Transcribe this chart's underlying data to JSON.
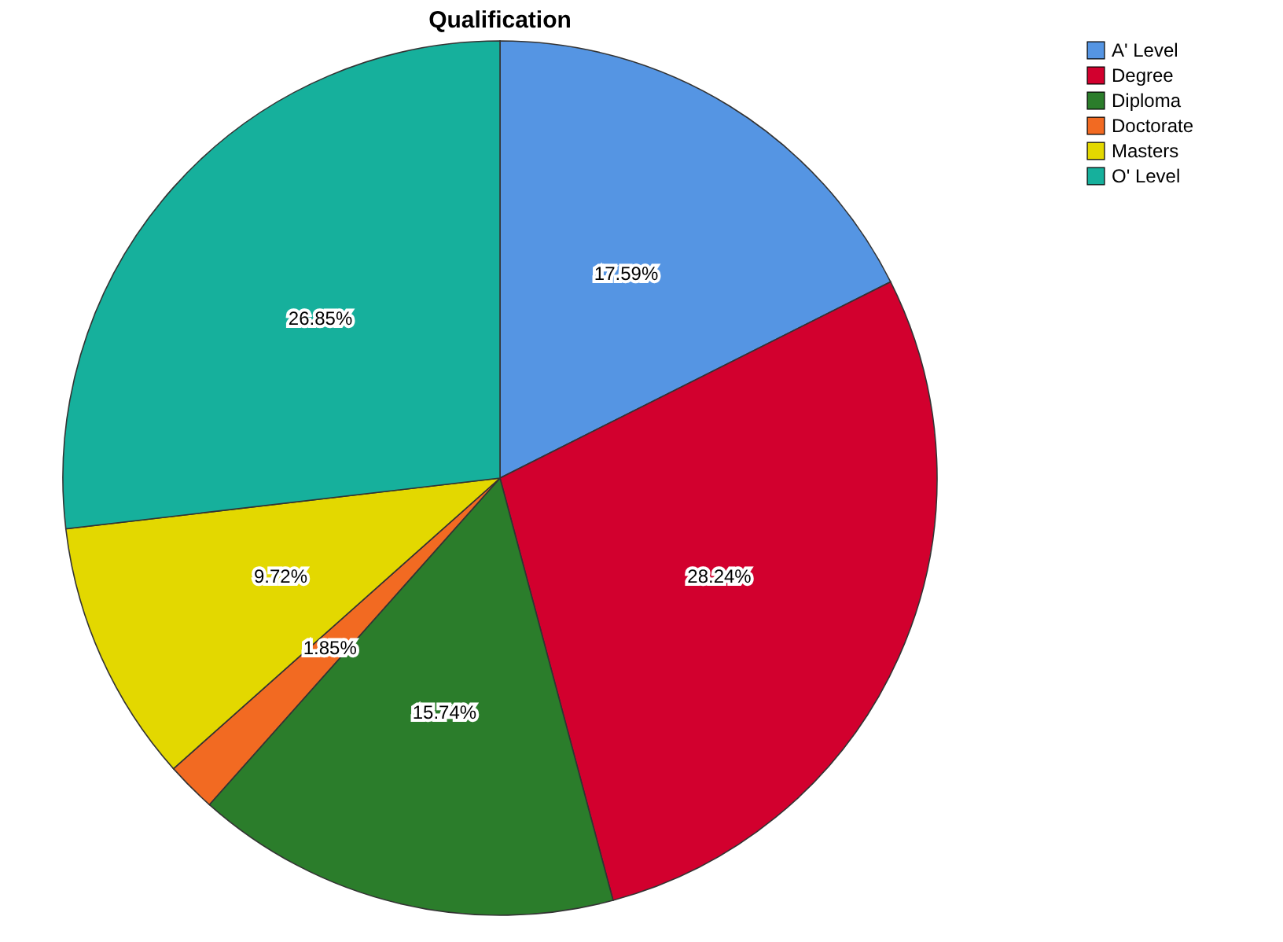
{
  "chart_data": {
    "type": "pie",
    "title": "Qualification",
    "categories": [
      "A' Level",
      "Degree",
      "Diploma",
      "Doctorate",
      "Masters",
      "O' Level"
    ],
    "values": [
      17.59,
      28.24,
      15.74,
      1.85,
      9.72,
      26.85
    ],
    "colors": [
      "#5595e3",
      "#d2002e",
      "#2b7d2b",
      "#f26a22",
      "#e3d800",
      "#16b09c"
    ],
    "value_labels": [
      "17.59%",
      "28.24%",
      "15.74%",
      "1.85%",
      "9.72%",
      "26.85%"
    ],
    "legend": "top right"
  }
}
